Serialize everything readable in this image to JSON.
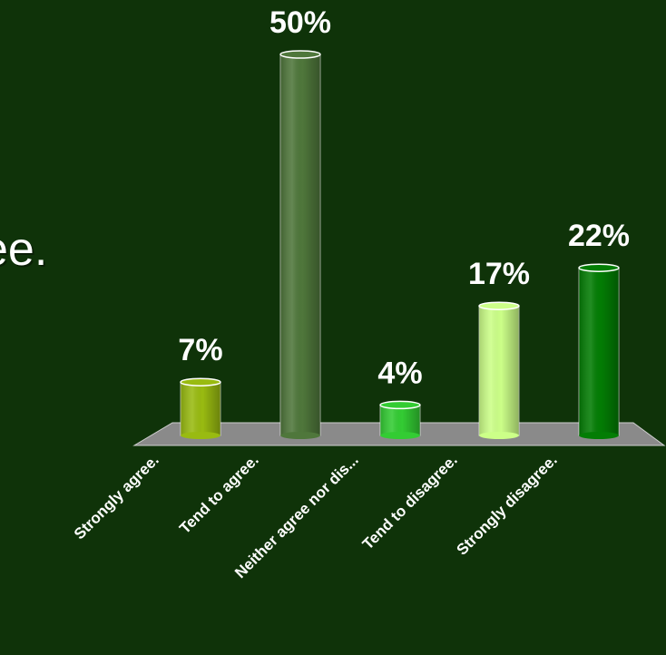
{
  "slide": {
    "fragment": "ee."
  },
  "chart_data": {
    "type": "bar",
    "title": "",
    "xlabel": "",
    "ylabel": "",
    "ylim": [
      0,
      50
    ],
    "grid": false,
    "categories": [
      "Strongly agree.",
      "Tend to agree.",
      "Neither agree nor dis...",
      "Tend to disagree.",
      "Strongly disagree."
    ],
    "values": [
      7,
      50,
      4,
      17,
      22
    ],
    "value_labels": [
      "7%",
      "50%",
      "4%",
      "17%",
      "22%"
    ],
    "colors": [
      "#99bb11",
      "#4f773b",
      "#33cc33",
      "#ccff88",
      "#037d04"
    ]
  }
}
